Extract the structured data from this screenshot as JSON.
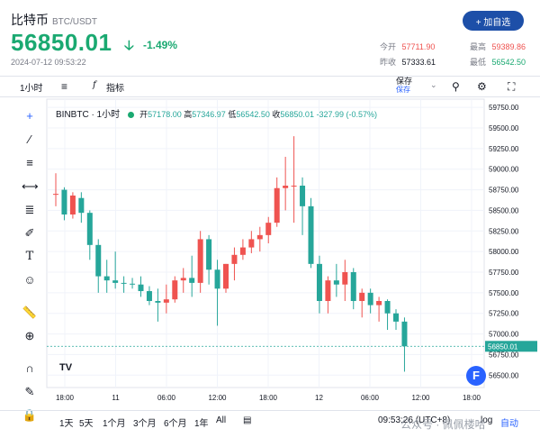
{
  "header": {
    "title": "比特币",
    "pair": "BTC/USDT",
    "price": "56850.01",
    "arrow_icon": "down-arrow-icon",
    "change_pct": "-1.49%",
    "timestamp": "2024-07-12 09:53:22",
    "add_button": "+ 加自选",
    "colors": {
      "up": "#ef5350",
      "down": "#26a69a",
      "price": "#1aa971"
    }
  },
  "stats": {
    "open_label": "今开",
    "open_value": "57711.90",
    "prev_close_label": "昨收",
    "prev_close_value": "57333.61",
    "high_label": "最高",
    "high_value": "59389.86",
    "low_label": "最低",
    "low_value": "56542.50"
  },
  "toolbar": {
    "interval": "1小时",
    "indicators": "指标",
    "save": "保存",
    "save_sub": "保存"
  },
  "legend": {
    "symbol": "BINBTC · 1小时",
    "open_label": "开",
    "open": "57178.00",
    "high_label": "高",
    "high": "57346.97",
    "low_label": "低",
    "low": "56542.50",
    "close_label": "收",
    "close": "56850.01",
    "change": "-327.99 (-0.57%)"
  },
  "bottombar": {
    "ranges": [
      "1天",
      "5天",
      "1个月",
      "3个月",
      "6个月",
      "1年",
      "All"
    ],
    "clock": "09:53:26 (UTC+8)",
    "log": "log",
    "auto": "自动"
  },
  "watermark": "公众号 · 佩佩楼哈",
  "chart_data": {
    "type": "candlestick",
    "x_tick_labels": [
      "18:00",
      "11",
      "06:00",
      "12:00",
      "18:00",
      "12",
      "06:00",
      "12:00",
      "18:00"
    ],
    "y_tick_labels": [
      "59750.00",
      "59500.00",
      "59250.00",
      "59000.00",
      "58750.00",
      "58500.00",
      "58250.00",
      "58000.00",
      "57750.00",
      "57500.00",
      "57250.00",
      "57000.00",
      "56750.00",
      "56500.00"
    ],
    "ylim": [
      56350,
      59850
    ],
    "last_price_label": "56850.01",
    "candles": [
      {
        "o": 58700,
        "h": 58950,
        "l": 58550,
        "c": 58700
      },
      {
        "o": 58750,
        "h": 58780,
        "l": 58380,
        "c": 58450
      },
      {
        "o": 58450,
        "h": 58720,
        "l": 58400,
        "c": 58680
      },
      {
        "o": 58650,
        "h": 58720,
        "l": 58350,
        "c": 58470
      },
      {
        "o": 58470,
        "h": 58500,
        "l": 57900,
        "c": 58080
      },
      {
        "o": 58080,
        "h": 58150,
        "l": 57500,
        "c": 57700
      },
      {
        "o": 57700,
        "h": 57900,
        "l": 57500,
        "c": 57650
      },
      {
        "o": 57650,
        "h": 58000,
        "l": 57550,
        "c": 57620
      },
      {
        "o": 57620,
        "h": 57700,
        "l": 57500,
        "c": 57610
      },
      {
        "o": 57610,
        "h": 57680,
        "l": 57550,
        "c": 57600
      },
      {
        "o": 57600,
        "h": 57700,
        "l": 57450,
        "c": 57520
      },
      {
        "o": 57520,
        "h": 57580,
        "l": 57350,
        "c": 57400
      },
      {
        "o": 57400,
        "h": 57550,
        "l": 57150,
        "c": 57380
      },
      {
        "o": 57380,
        "h": 57600,
        "l": 57250,
        "c": 57420
      },
      {
        "o": 57420,
        "h": 57700,
        "l": 57380,
        "c": 57650
      },
      {
        "o": 57650,
        "h": 57800,
        "l": 57500,
        "c": 57680
      },
      {
        "o": 57680,
        "h": 57950,
        "l": 57450,
        "c": 57620
      },
      {
        "o": 57620,
        "h": 58250,
        "l": 57500,
        "c": 58150
      },
      {
        "o": 58150,
        "h": 58200,
        "l": 57600,
        "c": 57780
      },
      {
        "o": 57780,
        "h": 57900,
        "l": 57100,
        "c": 57550
      },
      {
        "o": 57550,
        "h": 57850,
        "l": 57500,
        "c": 57850
      },
      {
        "o": 57850,
        "h": 58050,
        "l": 57650,
        "c": 57960
      },
      {
        "o": 57960,
        "h": 58150,
        "l": 57900,
        "c": 58050
      },
      {
        "o": 58050,
        "h": 58250,
        "l": 57980,
        "c": 58150
      },
      {
        "o": 58150,
        "h": 58300,
        "l": 58000,
        "c": 58200
      },
      {
        "o": 58200,
        "h": 58420,
        "l": 58100,
        "c": 58350
      },
      {
        "o": 58350,
        "h": 58900,
        "l": 58300,
        "c": 58770
      },
      {
        "o": 58770,
        "h": 59150,
        "l": 58500,
        "c": 58800
      },
      {
        "o": 58800,
        "h": 59400,
        "l": 58350,
        "c": 58800
      },
      {
        "o": 58800,
        "h": 58900,
        "l": 58200,
        "c": 58550
      },
      {
        "o": 58550,
        "h": 58650,
        "l": 57800,
        "c": 57850
      },
      {
        "o": 57850,
        "h": 57950,
        "l": 57250,
        "c": 57400
      },
      {
        "o": 57400,
        "h": 57700,
        "l": 57250,
        "c": 57650
      },
      {
        "o": 57650,
        "h": 57850,
        "l": 57450,
        "c": 57600
      },
      {
        "o": 57600,
        "h": 57900,
        "l": 57400,
        "c": 57750
      },
      {
        "o": 57750,
        "h": 57800,
        "l": 57300,
        "c": 57400
      },
      {
        "o": 57400,
        "h": 57550,
        "l": 57200,
        "c": 57500
      },
      {
        "o": 57500,
        "h": 57550,
        "l": 57250,
        "c": 57350
      },
      {
        "o": 57350,
        "h": 57450,
        "l": 57150,
        "c": 57400
      },
      {
        "o": 57400,
        "h": 57420,
        "l": 57050,
        "c": 57250
      },
      {
        "o": 57250,
        "h": 57300,
        "l": 57050,
        "c": 57150
      },
      {
        "o": 57150,
        "h": 57200,
        "l": 56542,
        "c": 56850
      }
    ]
  }
}
